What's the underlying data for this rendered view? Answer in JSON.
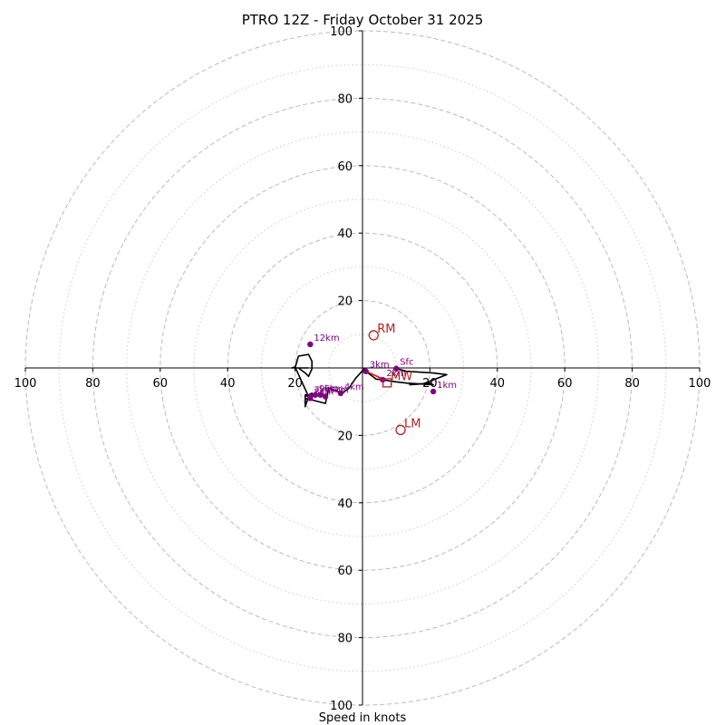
{
  "chart_data": {
    "type": "line",
    "title": "PTRO 12Z - Friday October 31 2025",
    "xlabel": "Speed in knots",
    "range_max": 100,
    "rings_major": [
      20,
      40,
      60,
      80,
      100
    ],
    "rings_minor": [
      10,
      30,
      50,
      70,
      90
    ],
    "x_ticks": [
      "100",
      "80",
      "60",
      "40",
      "20",
      "20",
      "40",
      "60",
      "80",
      "100"
    ],
    "y_ticks": [
      "100",
      "80",
      "60",
      "40",
      "20",
      "20",
      "40",
      "60",
      "80",
      "100"
    ],
    "colors": {
      "hodograph": "#000000",
      "height_points": "#800080",
      "motion": "#b22222",
      "mean_wind_segment": "#ff0000",
      "grid": "#bbbbbb"
    },
    "hodograph": {
      "u": [
        10,
        13,
        21,
        25,
        18,
        14,
        20,
        21,
        13,
        9,
        6,
        4,
        1,
        0.5,
        -2,
        -4,
        -6,
        -6,
        -10,
        -11,
        -17,
        -17,
        -15,
        -15,
        -16,
        -17,
        -17,
        -15,
        -15,
        -16,
        -16,
        -20,
        -21,
        -19,
        -17,
        -16,
        -15,
        -15,
        -16,
        -19,
        -20,
        -16
      ],
      "v": [
        -0.2,
        -1,
        -1.5,
        -2,
        -4.7,
        -5,
        -4.5,
        -5,
        -4.5,
        -4,
        -3.5,
        -3.3,
        -1,
        -0.3,
        -3,
        -6,
        -7.5,
        -7.5,
        -6,
        -10.5,
        -9,
        -8.5,
        -7.5,
        -8,
        -8.5,
        -11.5,
        -8,
        -8,
        -8.5,
        -8,
        -8.5,
        0.3,
        0,
        0,
        -1.5,
        -2.5,
        -0.3,
        2,
        4,
        3.5,
        0,
        0
      ]
    },
    "height_points": [
      {
        "label": "Sfc",
        "u": 10,
        "v": -0.2
      },
      {
        "label": "1km",
        "u": 21,
        "v": -7
      },
      {
        "label": "2km",
        "u": 6,
        "v": -3.5
      },
      {
        "label": "3km",
        "u": 1,
        "v": -1
      },
      {
        "label": "4km",
        "u": -6.5,
        "v": -7.5
      },
      {
        "label": "5km",
        "u": -11,
        "v": -8.5
      },
      {
        "label": "6km",
        "u": -12.5,
        "v": -8
      },
      {
        "label": "7km",
        "u": -15.5,
        "v": -8.5
      },
      {
        "label": "8km",
        "u": -15.5,
        "v": -9
      },
      {
        "label": "9km",
        "u": -14,
        "v": -8
      },
      {
        "label": "12km",
        "u": -15.5,
        "v": 7
      }
    ],
    "motions": [
      {
        "label": "RM",
        "u": 3.3,
        "v": 9.7,
        "marker": "circle"
      },
      {
        "label": "LM",
        "u": 11.3,
        "v": -18.4,
        "marker": "circle"
      },
      {
        "label": "MW",
        "u": 7.3,
        "v": -4.4,
        "marker": "square"
      }
    ],
    "mean_wind_segment": {
      "u": [
        1,
        6.5
      ],
      "v": [
        -1,
        -3.5
      ]
    }
  }
}
